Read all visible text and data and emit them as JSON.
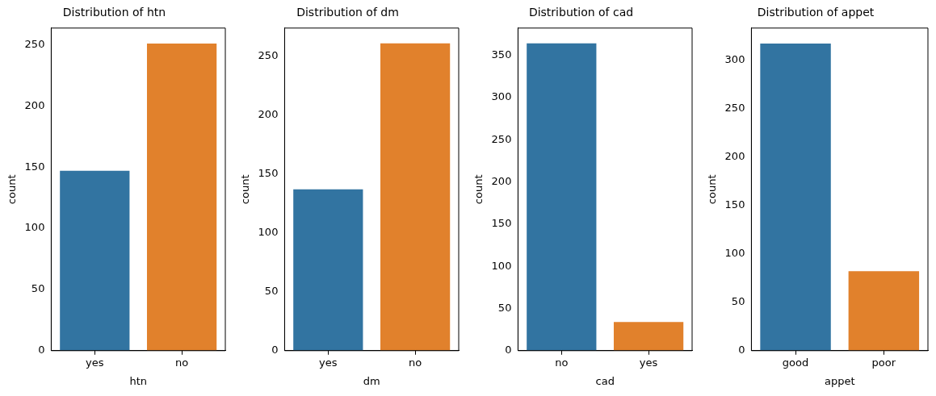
{
  "chart_data": [
    {
      "type": "bar",
      "title": "Distribution of htn",
      "xlabel": "htn",
      "ylabel": "count",
      "categories": [
        "yes",
        "no"
      ],
      "values": [
        147,
        251
      ],
      "colors": [
        "#3274a1",
        "#e1812c"
      ],
      "ylim": [
        0,
        263.6
      ],
      "yticks": [
        0,
        50,
        100,
        150,
        200,
        250
      ],
      "grid": false,
      "legend": false
    },
    {
      "type": "bar",
      "title": "Distribution of dm",
      "xlabel": "dm",
      "ylabel": "count",
      "categories": [
        "yes",
        "no"
      ],
      "values": [
        137,
        261
      ],
      "colors": [
        "#3274a1",
        "#e1812c"
      ],
      "ylim": [
        0,
        274
      ],
      "yticks": [
        0,
        50,
        100,
        150,
        200,
        250
      ],
      "grid": false,
      "legend": false
    },
    {
      "type": "bar",
      "title": "Distribution of cad",
      "xlabel": "cad",
      "ylabel": "count",
      "categories": [
        "no",
        "yes"
      ],
      "values": [
        364,
        34
      ],
      "colors": [
        "#3274a1",
        "#e1812c"
      ],
      "ylim": [
        0,
        382.2
      ],
      "yticks": [
        0,
        50,
        100,
        150,
        200,
        250,
        300,
        350
      ],
      "grid": false,
      "legend": false
    },
    {
      "type": "bar",
      "title": "Distribution of appet",
      "xlabel": "appet",
      "ylabel": "count",
      "categories": [
        "good",
        "poor"
      ],
      "values": [
        317,
        82
      ],
      "colors": [
        "#3274a1",
        "#e1812c"
      ],
      "ylim": [
        0,
        332.9
      ],
      "yticks": [
        0,
        50,
        100,
        150,
        200,
        250,
        300
      ],
      "grid": false,
      "legend": false
    }
  ]
}
